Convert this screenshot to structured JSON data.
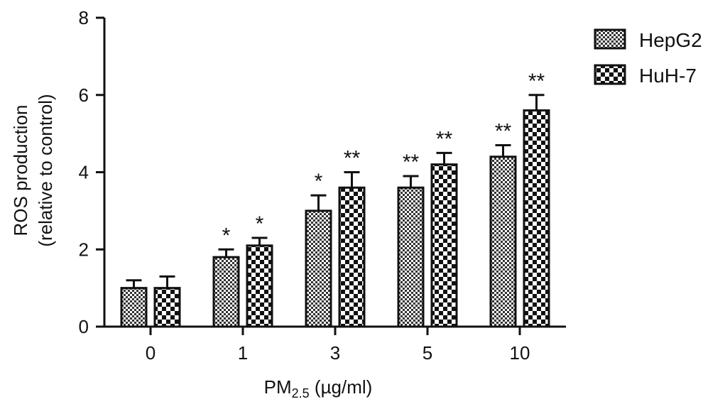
{
  "chart_data": {
    "type": "bar",
    "categories": [
      "0",
      "1",
      "3",
      "5",
      "10"
    ],
    "series": [
      {
        "name": "HepG2",
        "values": [
          1.0,
          1.8,
          3.0,
          3.6,
          4.4
        ],
        "errors": [
          0.2,
          0.2,
          0.4,
          0.3,
          0.3
        ],
        "significance": [
          "",
          "*",
          "*",
          "**",
          "**"
        ],
        "pattern": "fine-checker"
      },
      {
        "name": "HuH-7",
        "values": [
          1.0,
          2.1,
          3.6,
          4.2,
          5.6
        ],
        "errors": [
          0.3,
          0.2,
          0.4,
          0.3,
          0.4
        ],
        "significance": [
          "",
          "*",
          "**",
          "**",
          "**"
        ],
        "pattern": "coarse-checker"
      }
    ],
    "ylabel_line1": "ROS production",
    "ylabel_line2": "(relative to control)",
    "xlabel_main": "PM",
    "xlabel_sub": "2.5",
    "xlabel_unit": " (µg/ml)",
    "ylim": [
      0,
      8
    ],
    "yticks": [
      0,
      2,
      4,
      6,
      8
    ],
    "grid": false,
    "legend_position": "top-right",
    "colors": {
      "bar_fill_base": "#ffffff",
      "ink": "#111111"
    }
  }
}
